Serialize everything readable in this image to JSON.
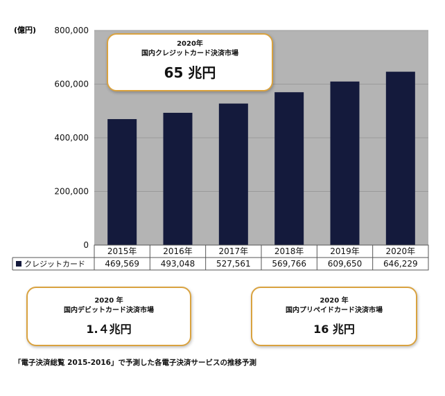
{
  "chart_data": {
    "type": "bar",
    "unit_label": "(億円)",
    "ylim": [
      0,
      800000
    ],
    "yticks": [
      "0",
      "200,000",
      "400,000",
      "600,000",
      "800,000"
    ],
    "ytick_values": [
      0,
      200000,
      400000,
      600000,
      800000
    ],
    "categories": [
      "2015年",
      "2016年",
      "2017年",
      "2018年",
      "2019年",
      "2020年"
    ],
    "series": [
      {
        "name": "クレジットカード",
        "values": [
          469569,
          493048,
          527561,
          569766,
          609650,
          646229
        ],
        "labels": [
          "469,569",
          "493,048",
          "527,561",
          "569,766",
          "609,650",
          "646,229"
        ],
        "color": "#141a3c"
      }
    ],
    "plot_background": "#b4b4b4",
    "grid": true
  },
  "callouts": {
    "credit": {
      "year": "2020年",
      "title": "国内クレジットカード決済市場",
      "value": "65 兆円"
    },
    "debit": {
      "year": "2020 年",
      "title": "国内デビットカード決済市場",
      "value": "1.４兆円"
    },
    "prepaid": {
      "year": "2020 年",
      "title": "国内プリペイドカード決済市場",
      "value": "16 兆円"
    }
  },
  "source_note": "「電子決済総覧 2015-2016」で予測した各電子決済サービスの推移予測",
  "colors": {
    "callout_border": "#d9a23f",
    "bar": "#141a3c",
    "plot": "#b4b4b4"
  }
}
